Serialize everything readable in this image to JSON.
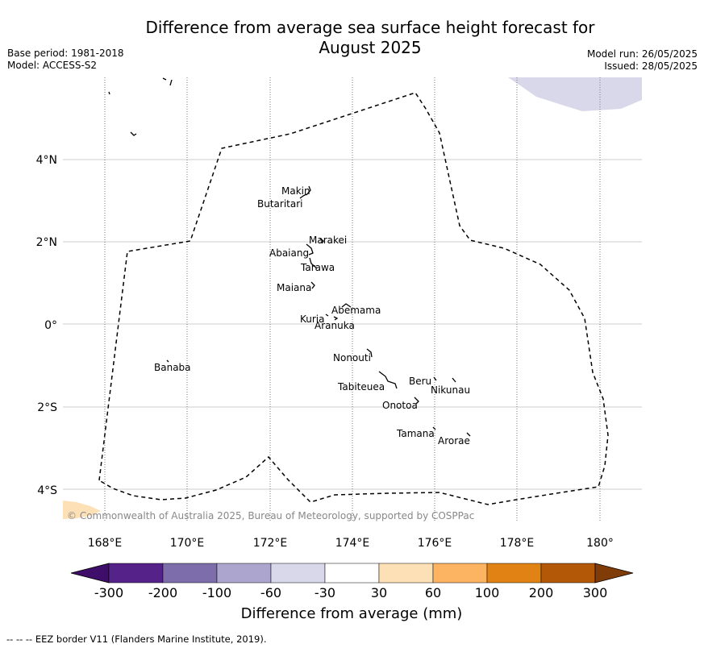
{
  "title": "Difference from average sea surface height forecast for August 2025",
  "title_line1": "Difference from average sea surface height forecast for",
  "title_line2": "August 2025",
  "base_period": "Base period: 1981-2018",
  "model": "Model: ACCESS-S2",
  "model_run": "Model run: 26/05/2025",
  "issued": "Issued: 28/05/2025",
  "copyright": "© Commonwealth of Australia 2025, Bureau of Meteorology, supported by COSPPac",
  "footnote": "--  --  -- EEZ border V11 (Flanders Marine Institute, 2019).",
  "axes": {
    "lon_ticks": [
      "168°E",
      "170°E",
      "172°E",
      "174°E",
      "176°E",
      "178°E",
      "180°"
    ],
    "lat_ticks": [
      "4°N",
      "2°N",
      "0°",
      "2°S",
      "4°S"
    ]
  },
  "places": [
    {
      "name": "Makin",
      "lon": 172.95,
      "lat": 3.25
    },
    {
      "name": "Butaritari",
      "lon": 172.8,
      "lat": 3.05
    },
    {
      "name": "Marakei",
      "lon": 173.3,
      "lat": 2.0
    },
    {
      "name": "Abaiang",
      "lon": 172.9,
      "lat": 1.75
    },
    {
      "name": "Tarawa",
      "lon": 173.0,
      "lat": 1.4
    },
    {
      "name": "Maiana",
      "lon": 173.0,
      "lat": 0.95
    },
    {
      "name": "Abemama",
      "lon": 173.9,
      "lat": 0.4
    },
    {
      "name": "Kuria",
      "lon": 173.4,
      "lat": 0.23
    },
    {
      "name": "Aranuka",
      "lon": 173.6,
      "lat": 0.15
    },
    {
      "name": "Nonouti",
      "lon": 174.4,
      "lat": -0.65
    },
    {
      "name": "Banaba",
      "lon": 169.5,
      "lat": -0.87
    },
    {
      "name": "Beru",
      "lon": 176.0,
      "lat": -1.35
    },
    {
      "name": "Nikunau",
      "lon": 176.45,
      "lat": -1.38
    },
    {
      "name": "Tabiteuea",
      "lon": 174.9,
      "lat": -1.45
    },
    {
      "name": "Onotoa",
      "lon": 175.55,
      "lat": -1.8
    },
    {
      "name": "Tamana",
      "lon": 176.0,
      "lat": -2.5
    },
    {
      "name": "Arorae",
      "lon": 176.8,
      "lat": -2.65
    }
  ],
  "colorbar": {
    "label": "Difference from average (mm)",
    "ticks": [
      "-300",
      "-200",
      "-100",
      "-60",
      "-30",
      "30",
      "60",
      "100",
      "200",
      "300"
    ],
    "colors": [
      "#3f0e6b",
      "#55228a",
      "#7d6dab",
      "#aca6cf",
      "#d8d8ea",
      "#ffffff",
      "#fee0b6",
      "#fdb462",
      "#e08214",
      "#b35806",
      "#7f3b08"
    ]
  },
  "colors": {
    "eez_border": "#000000",
    "grid": "#cccccc",
    "anomaly_negative_patch": "#d8d8ea",
    "anomaly_positive_patch": "#fee0b6"
  }
}
